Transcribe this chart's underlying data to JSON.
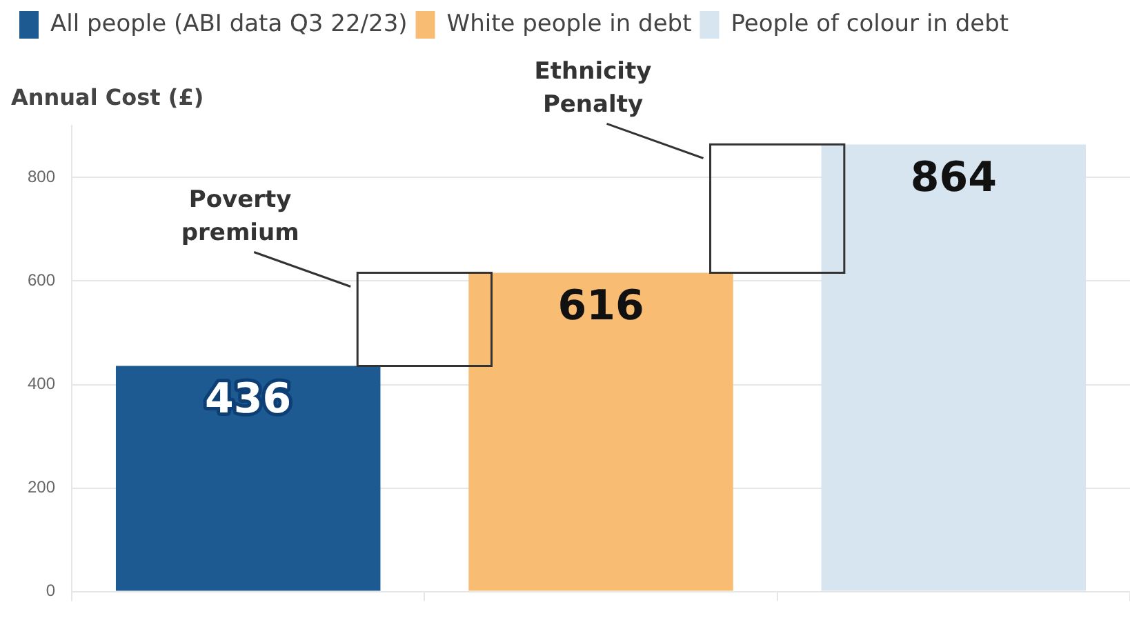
{
  "chart_data": {
    "type": "bar",
    "ylabel": "Annual Cost (£)",
    "categories": [
      null,
      null,
      null
    ],
    "series": [
      {
        "name": "All people (ABI data Q3 22/23)",
        "color": "#1d5a91",
        "values": [
          436,
          null,
          null
        ]
      },
      {
        "name": "White people in debt",
        "color": "#f8bd73",
        "values": [
          null,
          616,
          null
        ]
      },
      {
        "name": "People of colour in debt",
        "color": "#d6e5f0",
        "values": [
          null,
          null,
          864
        ]
      }
    ],
    "ylim": [
      0,
      900
    ],
    "yticks": [
      0,
      200,
      400,
      600,
      800
    ],
    "grid": "y",
    "legend": "top left",
    "tick_labels": "y",
    "data_labels": true,
    "annotations": [
      "Poverty premium",
      "Ethnicity Penalty"
    ]
  }
}
